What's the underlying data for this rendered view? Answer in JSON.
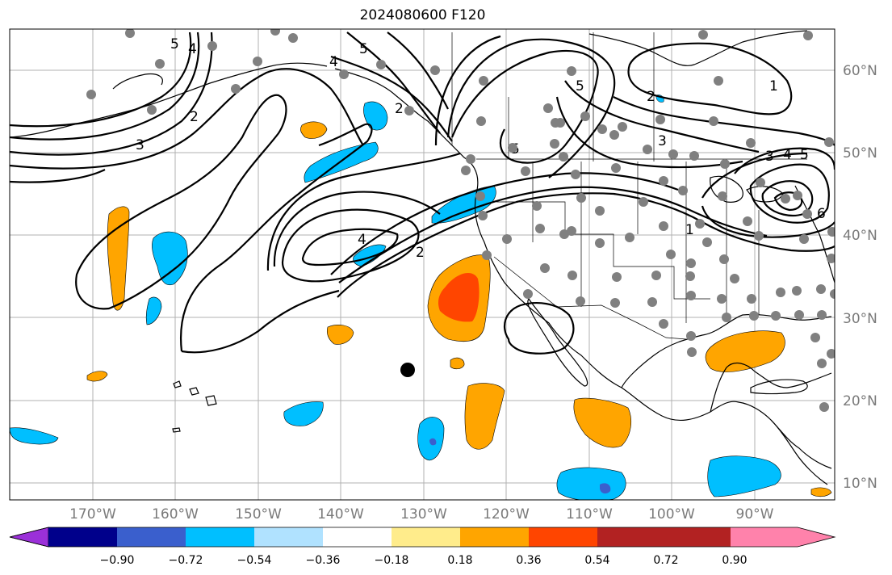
{
  "title": "2024080600 F120",
  "map": {
    "latitude_labels": [
      "60°N",
      "50°N",
      "40°N",
      "30°N",
      "20°N",
      "10°N"
    ],
    "longitude_labels": [
      "170°W",
      "160°W",
      "150°W",
      "140°W",
      "130°W",
      "120°W",
      "110°W",
      "100°W",
      "90°W"
    ],
    "contour_labels": [
      "5",
      "4",
      "3",
      "2",
      "4",
      "2",
      "5",
      "4",
      "5",
      "3",
      "2",
      "1",
      "3",
      "4",
      "5",
      "1",
      "2",
      "5",
      "6"
    ]
  },
  "colorbar": {
    "colors": [
      "#9b30d9",
      "#00008b",
      "#3a5fcd",
      "#00bfff",
      "#b0e2ff",
      "#ffffff",
      "#ffec8b",
      "#ffa500",
      "#ff4500",
      "#b22222",
      "#ff82ab"
    ],
    "tick_labels": [
      "−0.90",
      "−0.72",
      "−0.54",
      "−0.36",
      "−0.18",
      "0.18",
      "0.36",
      "0.54",
      "0.72",
      "0.90"
    ]
  },
  "legend_colors": {
    "contour": "#000000",
    "station_dot": "#808080",
    "target_dot": "#000000"
  }
}
